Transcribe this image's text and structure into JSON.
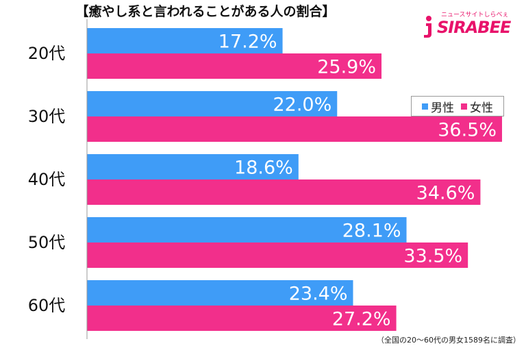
{
  "title": "【癒やし系と言われることがある人の割合】",
  "logo": {
    "tagline": "ニュースサイトしらべぇ",
    "name": "SIRABEE"
  },
  "legend": {
    "male": "男性",
    "female": "女性"
  },
  "footnote": "（全国の20〜60代の男女1589名に調査）",
  "colors": {
    "male": "#3f9cf7",
    "female": "#f22f8b",
    "axis": "#999999",
    "logo": "#e8126a"
  },
  "chart_data": {
    "type": "bar",
    "orientation": "horizontal",
    "categories": [
      "20代",
      "30代",
      "40代",
      "50代",
      "60代"
    ],
    "series": [
      {
        "name": "男性",
        "values": [
          17.2,
          22.0,
          18.6,
          28.1,
          23.4
        ],
        "labels": [
          "17.2%",
          "22.0%",
          "18.6%",
          "28.1%",
          "23.4%"
        ]
      },
      {
        "name": "女性",
        "values": [
          25.9,
          36.5,
          34.6,
          33.5,
          27.2
        ],
        "labels": [
          "25.9%",
          "36.5%",
          "34.6%",
          "33.5%",
          "27.2%"
        ]
      }
    ],
    "xlim": [
      0,
      36.5
    ],
    "grid": false,
    "legend_position": "right"
  }
}
